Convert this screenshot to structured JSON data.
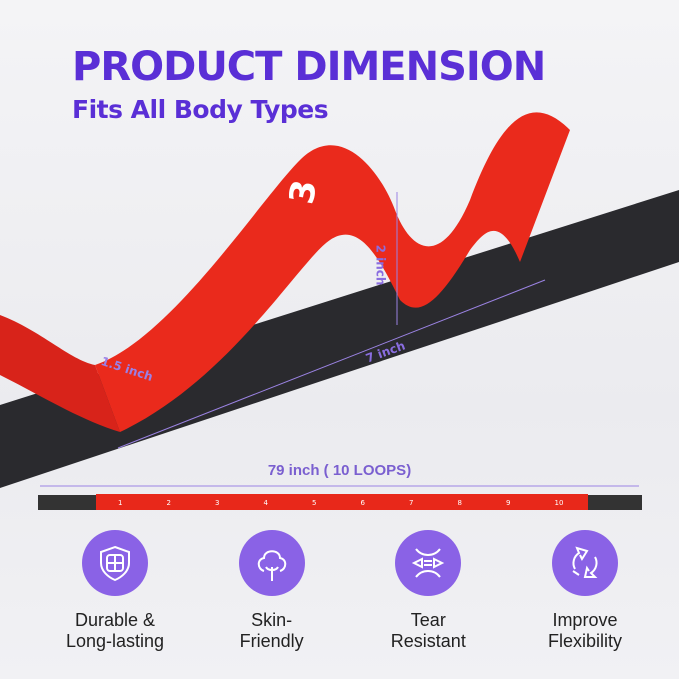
{
  "header": {
    "title": "PRODUCT DIMENSION",
    "subtitle": "Fits All Body Types"
  },
  "strap": {
    "loop_number": "3",
    "width_label": "1.5 inch",
    "height_label": "2 inch",
    "loop_length_label": "7 inch",
    "total_length_label": "79 inch  ( 10 LOOPS)",
    "loop_numbers": [
      "1",
      "2",
      "3",
      "4",
      "5",
      "6",
      "7",
      "8",
      "9",
      "10"
    ]
  },
  "colors": {
    "title": "#5a2fd6",
    "icon_bg": "#8a62e6",
    "strap_red": "#e8281a",
    "strap_black": "#2a2a2e"
  },
  "features": [
    {
      "icon": "shield-icon",
      "line1": "Durable &",
      "line2": "Long-lasting"
    },
    {
      "icon": "cotton-icon",
      "line1": "Skin-",
      "line2": "Friendly"
    },
    {
      "icon": "stretch-arrows-icon",
      "line1": "Tear",
      "line2": "Resistant"
    },
    {
      "icon": "cycle-arrows-icon",
      "line1": "Improve",
      "line2": "Flexibility"
    }
  ]
}
